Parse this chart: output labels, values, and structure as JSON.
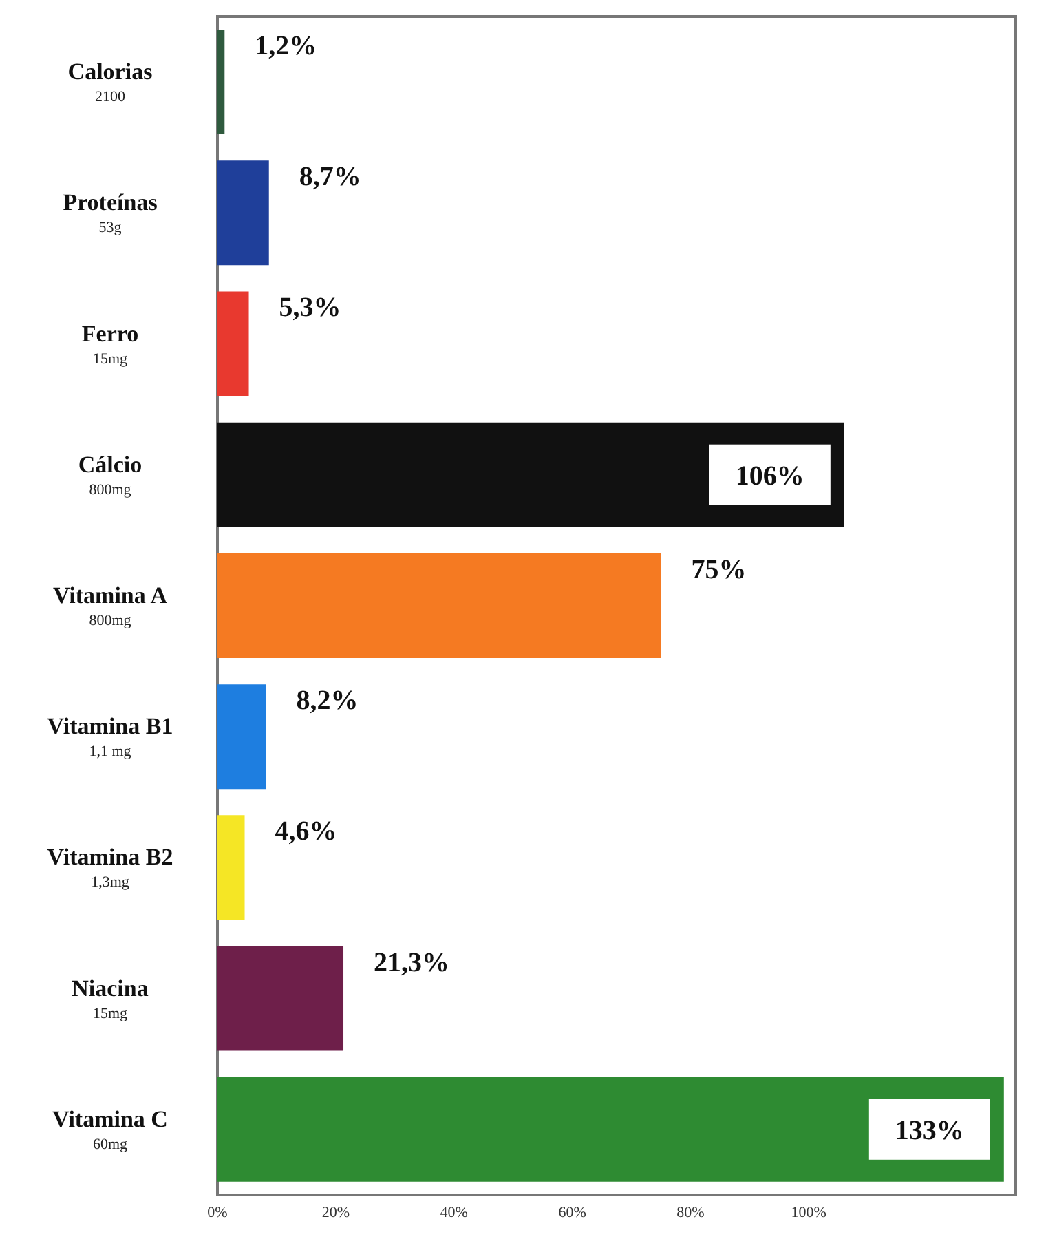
{
  "chart_data": {
    "type": "bar",
    "orientation": "horizontal",
    "categories": [
      "Calorias\n2100",
      "Proteínas\n53g",
      "Ferro\n15mg",
      "Cálcio\n800mg",
      "Vitamina A\n800mg",
      "Vitamina B1\n1,1 mg",
      "Vitamina B2\n1,3mg",
      "Niacina\n15mg",
      "Vitamina C\n60mg"
    ],
    "values": [
      1.2,
      8.7,
      5.3,
      106,
      75,
      8.2,
      4.6,
      21.3,
      133
    ],
    "colors": [
      "#2f5a3e",
      "#1f3f9a",
      "#e8392f",
      "#111111",
      "#f57a22",
      "#1e7ee0",
      "#f5e625",
      "#6e1f4a",
      "#2e8b32"
    ],
    "value_labels": [
      "1,2%",
      "8,7%",
      "5,3%",
      "106%",
      "75%",
      "8,2%",
      "4,6%",
      "21,3%",
      "133%"
    ],
    "xlim": [
      0,
      135
    ],
    "xticks": [
      {
        "value": 0,
        "label": "0%"
      },
      {
        "value": 20,
        "label": "20%"
      },
      {
        "value": 40,
        "label": "40%"
      },
      {
        "value": 60,
        "label": "60%"
      },
      {
        "value": 80,
        "label": "80%"
      },
      {
        "value": 100,
        "label": "100%"
      }
    ],
    "grid": false,
    "legend": false
  }
}
